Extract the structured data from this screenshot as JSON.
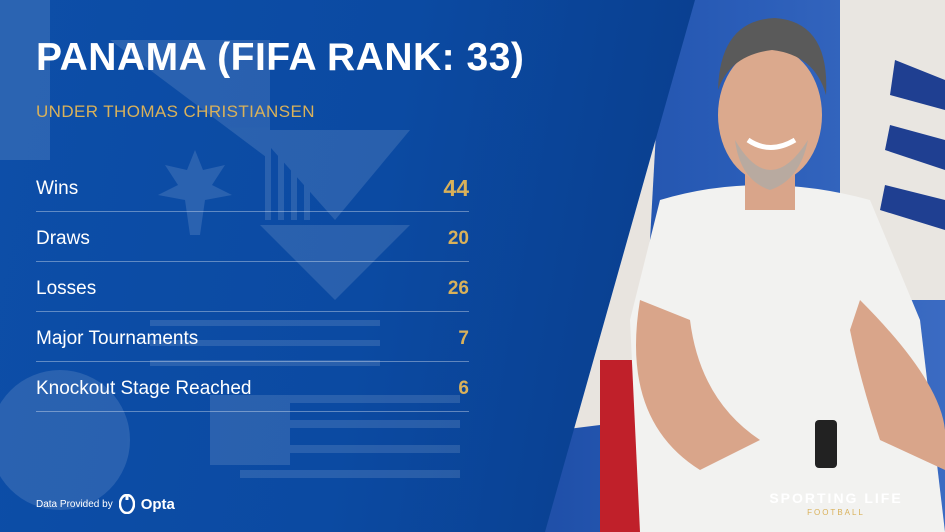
{
  "title": "PANAMA (FIFA RANK: 33)",
  "subtitle": "UNDER THOMAS CHRISTIANSEN",
  "stats": [
    {
      "label": "Wins",
      "value": "44"
    },
    {
      "label": "Draws",
      "value": "20"
    },
    {
      "label": "Losses",
      "value": "26"
    },
    {
      "label": "Major Tournaments",
      "value": "7"
    },
    {
      "label": "Knockout Stage Reached",
      "value": "6"
    }
  ],
  "footer": {
    "provided_by": "Data Provided by",
    "provider": "Opta",
    "brand_main": "SPORTING LIFE",
    "brand_sub": "FOOTBALL"
  },
  "colors": {
    "gold": "#d9b15a",
    "blue": "#0b4aa2"
  }
}
